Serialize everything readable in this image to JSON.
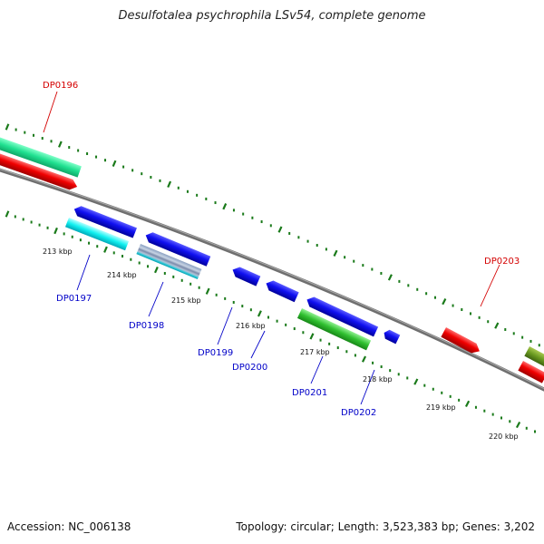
{
  "title": "Desulfotalea psychrophila LSv54, complete genome",
  "footer": {
    "accession": "Accession: NC_006138",
    "summary": "Topology: circular; Length: 3,523,383 bp; Genes: 3,202"
  },
  "colors": {
    "forward": "#e80000",
    "reverse": "#0000e8",
    "label_forward": "#d40000",
    "label_reverse": "#0000c8",
    "tick": "#1a7a1a",
    "backbone": "#777777"
  },
  "tick_labels": [
    "213 kbp",
    "214 kbp",
    "215 kbp",
    "216 kbp",
    "217 kbp",
    "218 kbp",
    "219 kbp",
    "220 kbp"
  ],
  "gene_labels": {
    "DP0196": "DP0196",
    "DP0197": "DP0197",
    "DP0198": "DP0198",
    "DP0199": "DP0199",
    "DP0200": "DP0200",
    "DP0201": "DP0201",
    "DP0202": "DP0202",
    "DP0203": "DP0203"
  }
}
